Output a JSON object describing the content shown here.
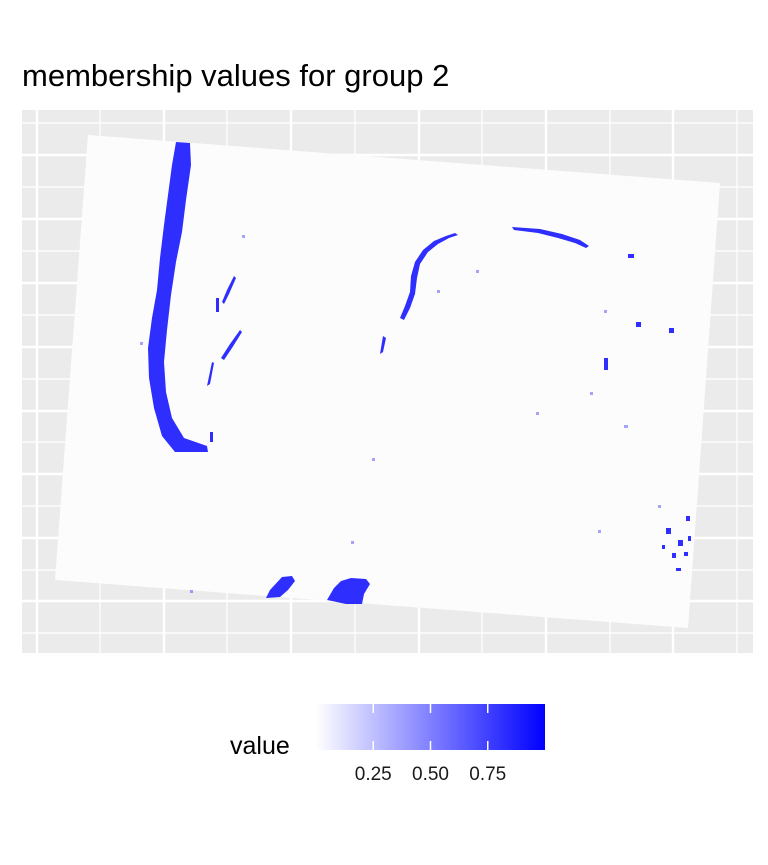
{
  "chart_data": {
    "type": "heatmap",
    "title": "membership values for group 2",
    "xlabel": "",
    "ylabel": "",
    "grid": true,
    "background_panel_color": "#EBEBEB",
    "low_value_color": "#FCFCFD",
    "high_value_color": "#0000FF",
    "legend": {
      "title": "value",
      "placement": "bottom",
      "range": [
        0.0,
        1.0
      ],
      "ticks": [
        0.25,
        0.5,
        0.75
      ],
      "tick_labels": [
        "0.25",
        "0.50",
        "0.75"
      ]
    },
    "high_membership_regions": [
      "left vertical band",
      "upper central arc",
      "bottom blobs",
      "scattered small specks"
    ]
  }
}
